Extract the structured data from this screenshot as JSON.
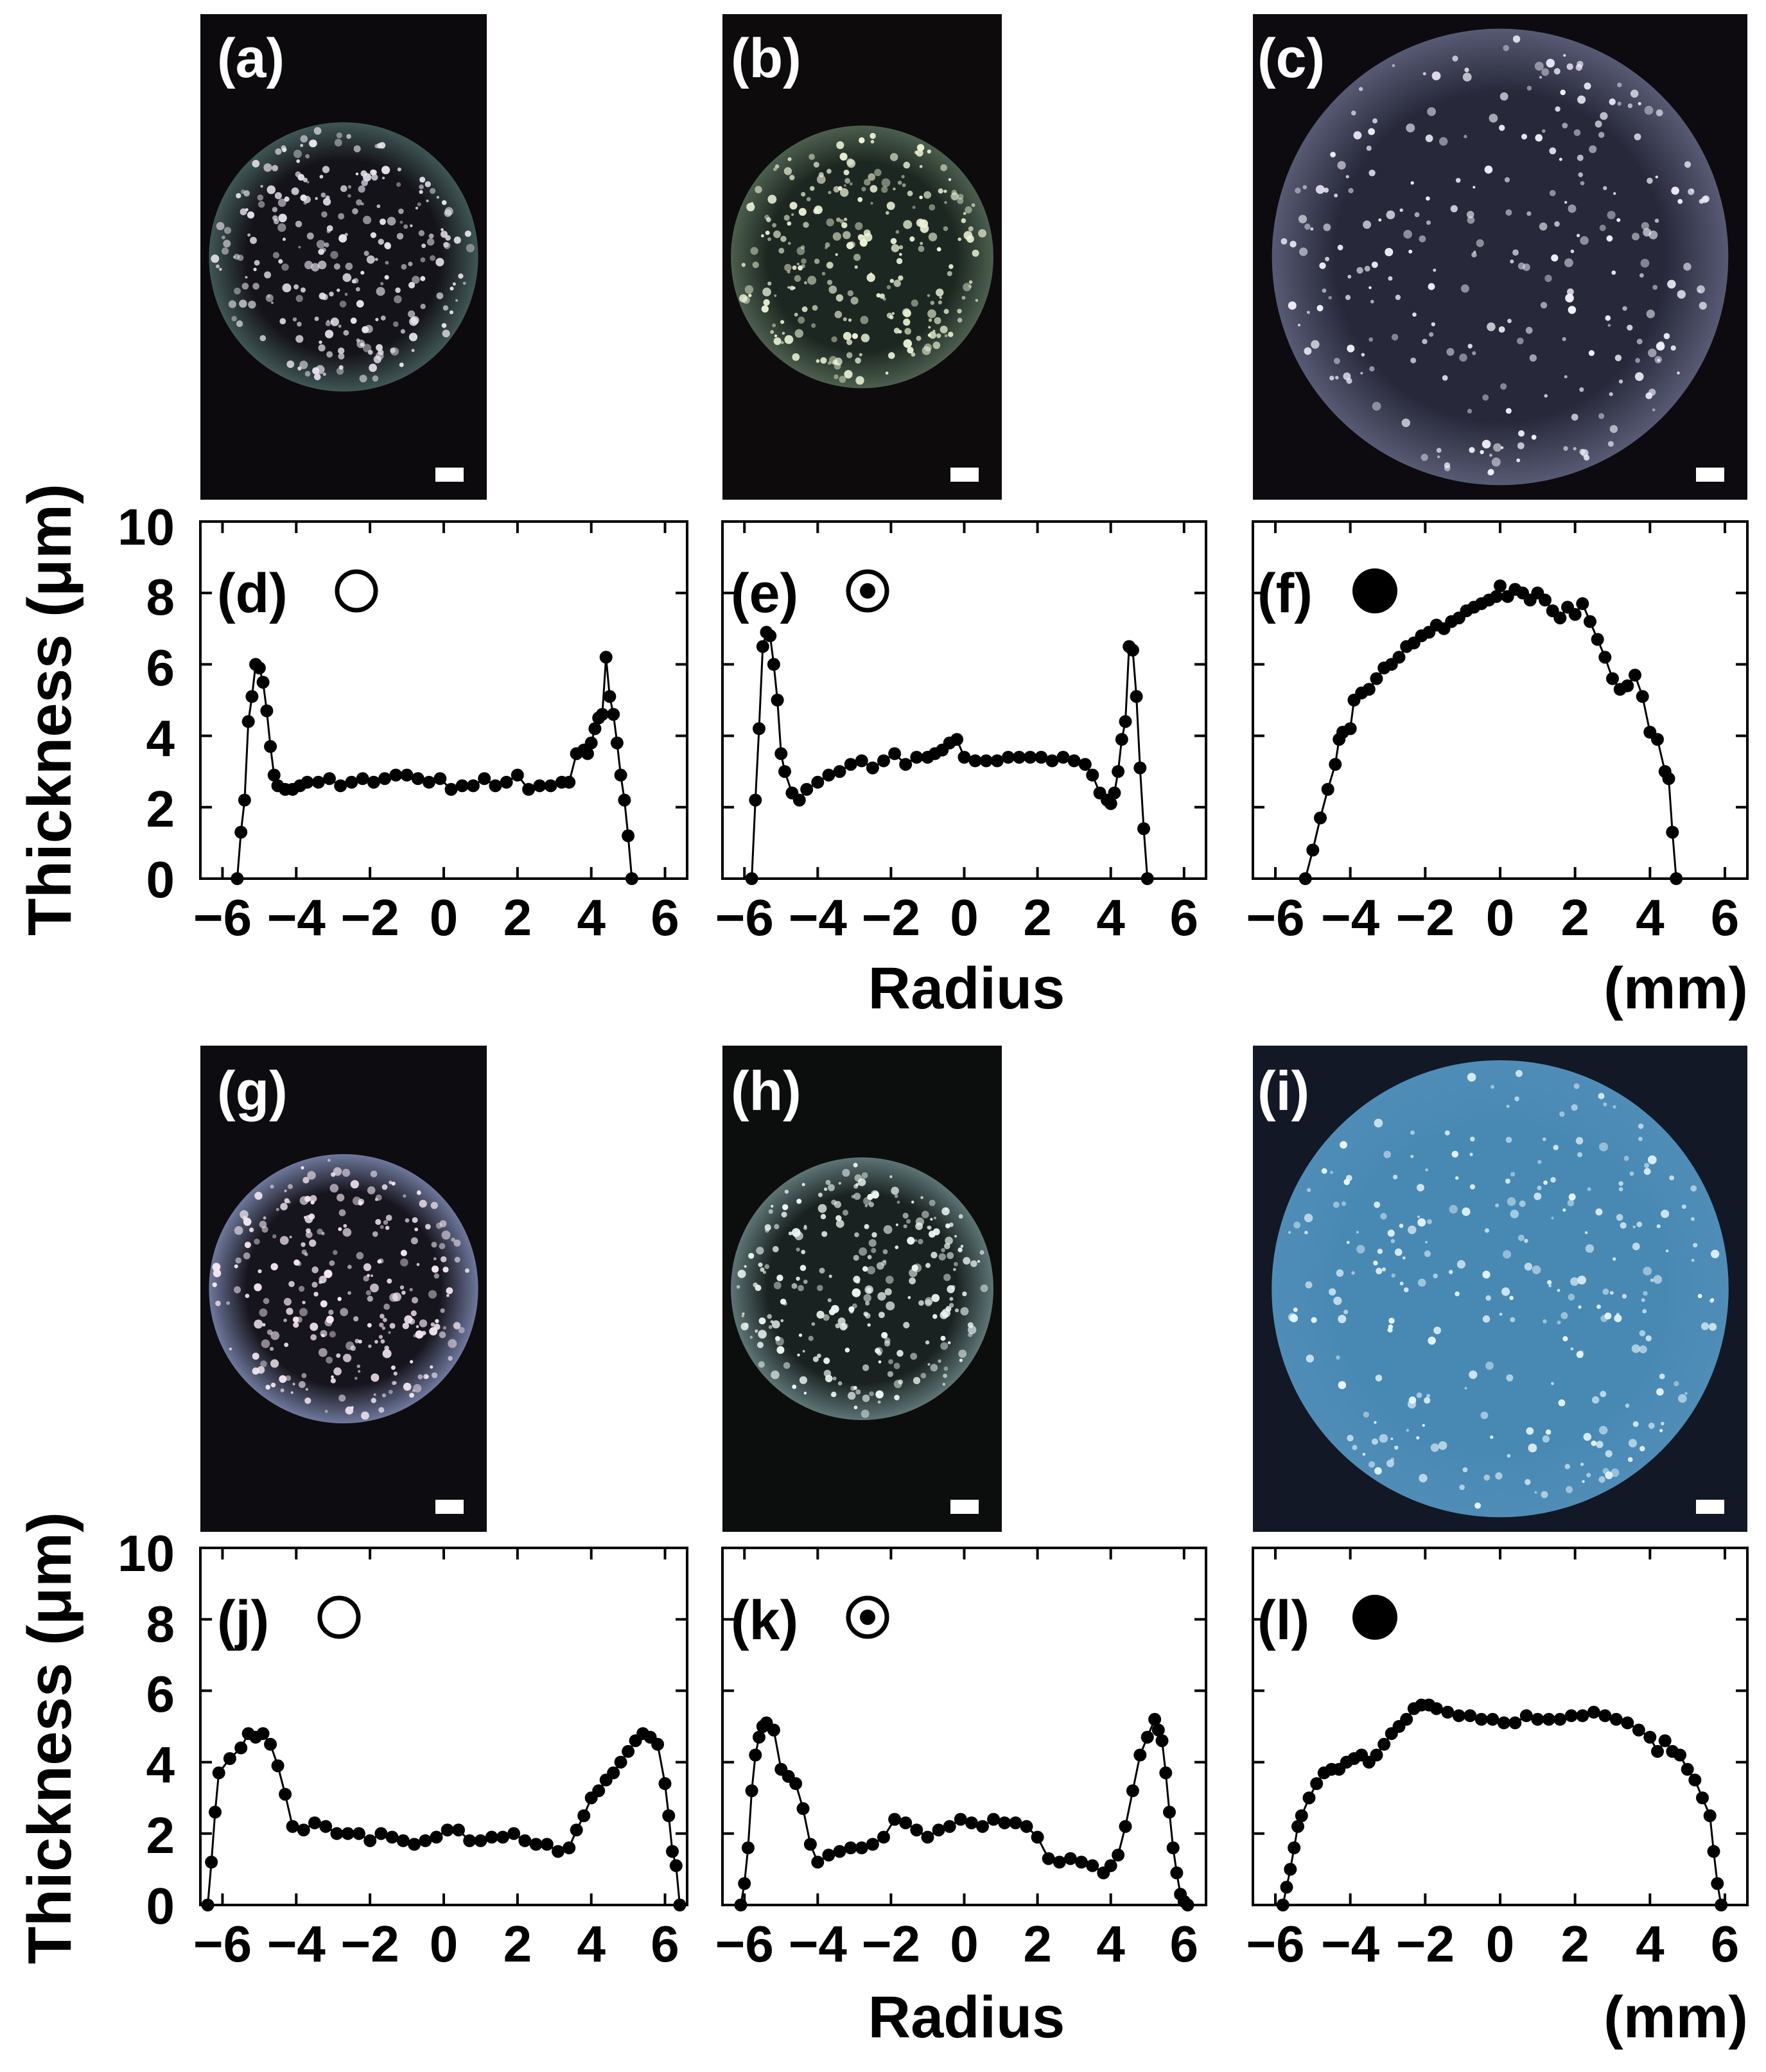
{
  "photos": [
    {
      "label": "(a)",
      "bg": "#0c0a0d",
      "disc": "#3f5654",
      "inner": "#141319",
      "speck": "#e7e2ee"
    },
    {
      "label": "(b)",
      "bg": "#0d0b0c",
      "disc": "#4c5e4e",
      "inner": "#1d2721",
      "speck": "#ecf3d6"
    },
    {
      "label": "(c)",
      "bg": "#0d0b10",
      "disc": "#575a73",
      "inner": "#27283a",
      "speck": "#f1f0fb"
    },
    {
      "label": "(g)",
      "bg": "#0d0c10",
      "disc": "#6e789c",
      "inner": "#16141c",
      "speck": "#f3e7f1"
    },
    {
      "label": "(h)",
      "bg": "#0c0d0d",
      "disc": "#5d7475",
      "inner": "#1a2221",
      "speck": "#eef8f2"
    },
    {
      "label": "(i)",
      "bg": "#121826",
      "disc": "#4f8db7",
      "inner": "#4889b4",
      "speck": "#e8f6fc"
    }
  ],
  "chart_data": [
    {
      "type": "line",
      "panel": "(d)",
      "marker": "open",
      "x": [
        -5.6,
        -5.5,
        -5.4,
        -5.3,
        -5.2,
        -5.1,
        -5.0,
        -4.9,
        -4.8,
        -4.7,
        -4.6,
        -4.5,
        -4.3,
        -4.1,
        -3.9,
        -3.7,
        -3.4,
        -3.1,
        -2.8,
        -2.5,
        -2.2,
        -1.9,
        -1.6,
        -1.3,
        -1.0,
        -0.7,
        -0.4,
        -0.1,
        0.2,
        0.5,
        0.8,
        1.1,
        1.4,
        1.7,
        2.0,
        2.3,
        2.6,
        2.9,
        3.2,
        3.4,
        3.6,
        3.8,
        3.9,
        4.0,
        4.1,
        4.2,
        4.3,
        4.4,
        4.5,
        4.6,
        4.7,
        4.8,
        4.9,
        5.0,
        5.1
      ],
      "y": [
        0,
        1.3,
        2.2,
        4.4,
        5.1,
        6.0,
        5.9,
        5.5,
        4.7,
        3.7,
        2.9,
        2.6,
        2.5,
        2.5,
        2.6,
        2.7,
        2.7,
        2.8,
        2.6,
        2.7,
        2.8,
        2.7,
        2.8,
        2.9,
        2.9,
        2.8,
        2.7,
        2.8,
        2.5,
        2.6,
        2.6,
        2.8,
        2.6,
        2.7,
        2.9,
        2.5,
        2.6,
        2.6,
        2.7,
        2.7,
        3.5,
        3.6,
        3.5,
        3.8,
        4.2,
        4.5,
        4.6,
        6.2,
        5.1,
        4.6,
        3.8,
        2.9,
        2.2,
        1.2,
        0
      ]
    },
    {
      "type": "line",
      "panel": "(e)",
      "marker": "dot",
      "x": [
        -5.8,
        -5.7,
        -5.6,
        -5.5,
        -5.4,
        -5.3,
        -5.2,
        -5.1,
        -5.0,
        -4.9,
        -4.7,
        -4.5,
        -4.3,
        -4.0,
        -3.7,
        -3.4,
        -3.1,
        -2.8,
        -2.5,
        -2.2,
        -1.9,
        -1.6,
        -1.3,
        -1.0,
        -0.8,
        -0.6,
        -0.4,
        -0.2,
        0.0,
        0.3,
        0.6,
        0.9,
        1.2,
        1.5,
        1.8,
        2.1,
        2.4,
        2.7,
        3.0,
        3.3,
        3.5,
        3.7,
        3.9,
        4.0,
        4.1,
        4.2,
        4.3,
        4.4,
        4.5,
        4.6,
        4.7,
        4.8,
        4.9,
        5.0
      ],
      "y": [
        0,
        2.2,
        4.2,
        6.5,
        6.9,
        6.8,
        6.0,
        5.0,
        3.5,
        3.0,
        2.4,
        2.2,
        2.5,
        2.7,
        2.9,
        3.0,
        3.2,
        3.3,
        3.1,
        3.3,
        3.5,
        3.2,
        3.4,
        3.4,
        3.5,
        3.6,
        3.8,
        3.9,
        3.4,
        3.3,
        3.3,
        3.3,
        3.4,
        3.4,
        3.4,
        3.4,
        3.3,
        3.4,
        3.3,
        3.2,
        2.9,
        2.4,
        2.2,
        2.1,
        2.4,
        3.0,
        3.9,
        4.4,
        6.5,
        6.4,
        5.1,
        3.1,
        1.4,
        0
      ]
    },
    {
      "type": "line",
      "panel": "(f)",
      "marker": "filled",
      "x": [
        -5.2,
        -5.0,
        -4.8,
        -4.6,
        -4.4,
        -4.3,
        -4.2,
        -4.0,
        -3.9,
        -3.7,
        -3.5,
        -3.3,
        -3.1,
        -2.9,
        -2.7,
        -2.5,
        -2.3,
        -2.1,
        -1.9,
        -1.7,
        -1.5,
        -1.3,
        -1.1,
        -0.9,
        -0.7,
        -0.5,
        -0.3,
        -0.1,
        0.0,
        0.2,
        0.4,
        0.6,
        0.8,
        1.0,
        1.2,
        1.4,
        1.6,
        1.8,
        2.0,
        2.2,
        2.4,
        2.6,
        2.8,
        3.0,
        3.2,
        3.4,
        3.6,
        3.8,
        4.0,
        4.2,
        4.4,
        4.5,
        4.6,
        4.7
      ],
      "y": [
        0,
        0.8,
        1.7,
        2.5,
        3.2,
        3.9,
        4.1,
        4.2,
        5.0,
        5.2,
        5.3,
        5.6,
        5.9,
        6.0,
        6.2,
        6.5,
        6.6,
        6.8,
        6.9,
        7.1,
        7.0,
        7.2,
        7.3,
        7.5,
        7.6,
        7.7,
        7.8,
        7.9,
        8.2,
        7.9,
        8.1,
        8.0,
        7.8,
        8.0,
        7.8,
        7.5,
        7.3,
        7.6,
        7.4,
        7.7,
        7.2,
        6.7,
        6.2,
        5.6,
        5.3,
        5.4,
        5.7,
        5.1,
        4.1,
        3.9,
        3.0,
        2.8,
        1.3,
        0
      ]
    },
    {
      "type": "line",
      "panel": "(j)",
      "marker": "open",
      "x": [
        -6.4,
        -6.3,
        -6.2,
        -6.1,
        -5.8,
        -5.5,
        -5.3,
        -5.1,
        -4.9,
        -4.7,
        -4.5,
        -4.3,
        -4.1,
        -3.8,
        -3.5,
        -3.2,
        -2.9,
        -2.6,
        -2.3,
        -2.0,
        -1.7,
        -1.4,
        -1.1,
        -0.8,
        -0.5,
        -0.2,
        0.1,
        0.4,
        0.7,
        1.0,
        1.3,
        1.6,
        1.9,
        2.2,
        2.5,
        2.8,
        3.1,
        3.4,
        3.6,
        3.8,
        4.0,
        4.2,
        4.4,
        4.6,
        4.8,
        5.0,
        5.2,
        5.4,
        5.6,
        5.8,
        6.0,
        6.1,
        6.2,
        6.3,
        6.4
      ],
      "y": [
        0,
        1.2,
        2.6,
        3.7,
        4.1,
        4.4,
        4.8,
        4.7,
        4.8,
        4.5,
        3.9,
        3.1,
        2.2,
        2.1,
        2.3,
        2.2,
        2.0,
        2.0,
        2.0,
        1.8,
        2.0,
        1.9,
        1.8,
        1.7,
        1.8,
        1.9,
        2.1,
        2.1,
        1.8,
        1.8,
        1.9,
        1.9,
        2.0,
        1.8,
        1.7,
        1.7,
        1.5,
        1.6,
        2.1,
        2.5,
        3.0,
        3.2,
        3.5,
        3.7,
        4.0,
        4.3,
        4.6,
        4.8,
        4.7,
        4.5,
        3.4,
        2.5,
        1.5,
        1.1,
        0
      ]
    },
    {
      "type": "line",
      "panel": "(k)",
      "marker": "dot",
      "x": [
        -6.1,
        -6.0,
        -5.9,
        -5.8,
        -5.7,
        -5.6,
        -5.5,
        -5.4,
        -5.2,
        -5.0,
        -4.8,
        -4.6,
        -4.4,
        -4.2,
        -4.0,
        -3.7,
        -3.4,
        -3.1,
        -2.8,
        -2.5,
        -2.2,
        -1.9,
        -1.6,
        -1.3,
        -1.0,
        -0.7,
        -0.4,
        -0.1,
        0.2,
        0.5,
        0.8,
        1.1,
        1.4,
        1.7,
        2.0,
        2.3,
        2.6,
        2.9,
        3.2,
        3.5,
        3.8,
        4.0,
        4.2,
        4.4,
        4.6,
        4.8,
        5.0,
        5.2,
        5.3,
        5.4,
        5.5,
        5.6,
        5.7,
        5.8,
        5.9,
        6.0,
        6.1
      ],
      "y": [
        0,
        0.6,
        1.6,
        3.2,
        4.2,
        4.7,
        5.0,
        5.1,
        4.9,
        3.8,
        3.6,
        3.4,
        2.7,
        1.7,
        1.2,
        1.4,
        1.5,
        1.6,
        1.6,
        1.7,
        1.9,
        2.4,
        2.3,
        2.1,
        1.9,
        2.1,
        2.2,
        2.4,
        2.3,
        2.2,
        2.4,
        2.3,
        2.3,
        2.2,
        1.9,
        1.3,
        1.2,
        1.3,
        1.2,
        1.1,
        0.9,
        1.1,
        1.4,
        2.2,
        3.2,
        4.2,
        4.7,
        5.2,
        4.9,
        4.6,
        3.7,
        2.6,
        1.6,
        0.9,
        0.3,
        0.1,
        0
      ]
    },
    {
      "type": "line",
      "panel": "(l)",
      "marker": "filled",
      "x": [
        -5.8,
        -5.7,
        -5.6,
        -5.5,
        -5.4,
        -5.3,
        -5.1,
        -4.9,
        -4.7,
        -4.5,
        -4.3,
        -4.1,
        -3.9,
        -3.7,
        -3.5,
        -3.3,
        -3.1,
        -2.9,
        -2.7,
        -2.5,
        -2.3,
        -2.1,
        -1.9,
        -1.7,
        -1.4,
        -1.1,
        -0.8,
        -0.5,
        -0.2,
        0.1,
        0.4,
        0.7,
        1.0,
        1.3,
        1.6,
        1.9,
        2.2,
        2.5,
        2.8,
        3.1,
        3.4,
        3.7,
        4.0,
        4.2,
        4.4,
        4.6,
        4.8,
        5.0,
        5.2,
        5.4,
        5.6,
        5.7,
        5.8,
        5.9
      ],
      "y": [
        0,
        0.5,
        1.0,
        1.6,
        2.2,
        2.5,
        3.0,
        3.4,
        3.7,
        3.8,
        3.8,
        4.0,
        4.1,
        4.2,
        4.0,
        4.2,
        4.5,
        4.8,
        5.0,
        5.2,
        5.5,
        5.6,
        5.6,
        5.5,
        5.4,
        5.3,
        5.3,
        5.2,
        5.2,
        5.1,
        5.1,
        5.3,
        5.2,
        5.2,
        5.2,
        5.3,
        5.3,
        5.4,
        5.3,
        5.2,
        5.1,
        4.9,
        4.7,
        4.3,
        4.6,
        4.3,
        4.2,
        3.8,
        3.5,
        3.0,
        2.5,
        1.5,
        0.6,
        0
      ]
    }
  ],
  "axes": {
    "ylabel": "Thickness (μm)",
    "xlabel": "Radius",
    "unit": "(mm)",
    "top_row_xticks": [
      "−6",
      "−4",
      "−2",
      "0",
      "2",
      "4",
      "6"
    ],
    "bottom_row_xticks": [
      "−6",
      "−4",
      "−2",
      "0",
      "2",
      "4",
      "6"
    ],
    "yticks": [
      "0",
      "2",
      "4",
      "6",
      "8",
      "10"
    ],
    "top_row_xlim": [
      -6.6,
      6.6
    ],
    "bottom_row_xlim": [
      -6.6,
      6.6
    ],
    "ylim": [
      0,
      10
    ]
  }
}
